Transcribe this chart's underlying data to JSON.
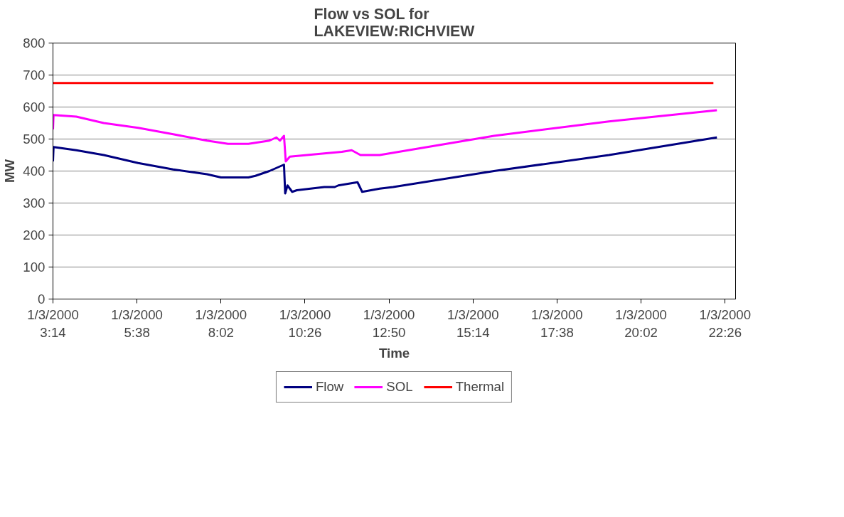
{
  "chart_data": {
    "type": "line",
    "title": "Flow vs SOL for\nLAKEVIEW:RICHVIEW",
    "xlabel": "Time",
    "ylabel": "MW",
    "xlim": [
      "2000-01-03T03:14",
      "2000-01-03T22:44"
    ],
    "xticks": [
      {
        "value": "2000-01-03T03:14",
        "label": "1/3/2000\n3:14"
      },
      {
        "value": "2000-01-03T05:38",
        "label": "1/3/2000\n5:38"
      },
      {
        "value": "2000-01-03T08:02",
        "label": "1/3/2000\n8:02"
      },
      {
        "value": "2000-01-03T10:26",
        "label": "1/3/2000\n10:26"
      },
      {
        "value": "2000-01-03T12:50",
        "label": "1/3/2000\n12:50"
      },
      {
        "value": "2000-01-03T15:14",
        "label": "1/3/2000\n15:14"
      },
      {
        "value": "2000-01-03T17:38",
        "label": "1/3/2000\n17:38"
      },
      {
        "value": "2000-01-03T20:02",
        "label": "1/3/2000\n20:02"
      },
      {
        "value": "2000-01-03T22:26",
        "label": "1/3/2000\n22:26"
      }
    ],
    "ylim": [
      0,
      800
    ],
    "yticks": [
      0,
      100,
      200,
      300,
      400,
      500,
      600,
      700,
      800
    ],
    "grid": "y",
    "legend": "bottom",
    "marker": "none",
    "line_style": "solid",
    "series": [
      {
        "name": "Flow",
        "color": "#000080",
        "x": [
          "2000-01-03T03:14",
          "2000-01-03T03:15",
          "2000-01-03T03:54",
          "2000-01-03T04:41",
          "2000-01-03T05:40",
          "2000-01-03T06:40",
          "2000-01-03T07:38",
          "2000-01-03T08:02",
          "2000-01-03T08:49",
          "2000-01-03T09:01",
          "2000-01-03T09:25",
          "2000-01-03T09:50",
          "2000-01-03T09:52",
          "2000-01-03T09:56",
          "2000-01-03T10:04",
          "2000-01-03T10:12",
          "2000-01-03T10:59",
          "2000-01-03T11:17",
          "2000-01-03T11:23",
          "2000-01-03T11:56",
          "2000-01-03T12:04",
          "2000-01-03T12:34",
          "2000-01-03T12:57",
          "2000-01-03T15:50",
          "2000-01-03T19:07",
          "2000-01-03T22:12"
        ],
        "values": [
          430,
          475,
          465,
          450,
          425,
          405,
          390,
          380,
          380,
          385,
          400,
          420,
          330,
          355,
          335,
          340,
          350,
          350,
          355,
          365,
          335,
          345,
          350,
          400,
          450,
          505
        ]
      },
      {
        "name": "SOL",
        "color": "#ff00ff",
        "x": [
          "2000-01-03T03:14",
          "2000-01-03T03:15",
          "2000-01-03T03:54",
          "2000-01-03T04:41",
          "2000-01-03T05:40",
          "2000-01-03T06:40",
          "2000-01-03T07:38",
          "2000-01-03T08:14",
          "2000-01-03T08:49",
          "2000-01-03T09:25",
          "2000-01-03T09:37",
          "2000-01-03T09:43",
          "2000-01-03T09:50",
          "2000-01-03T09:53",
          "2000-01-03T10:00",
          "2000-01-03T10:59",
          "2000-01-03T11:29",
          "2000-01-03T11:46",
          "2000-01-03T12:01",
          "2000-01-03T12:34",
          "2000-01-03T15:50",
          "2000-01-03T19:07",
          "2000-01-03T22:12"
        ],
        "values": [
          530,
          575,
          570,
          550,
          535,
          515,
          495,
          485,
          485,
          495,
          505,
          495,
          510,
          430,
          445,
          455,
          460,
          465,
          450,
          450,
          510,
          555,
          590
        ]
      },
      {
        "name": "Thermal",
        "color": "#ff0000",
        "x": [
          "2000-01-03T03:14",
          "2000-01-03T22:06"
        ],
        "values": [
          675,
          675
        ]
      }
    ]
  }
}
